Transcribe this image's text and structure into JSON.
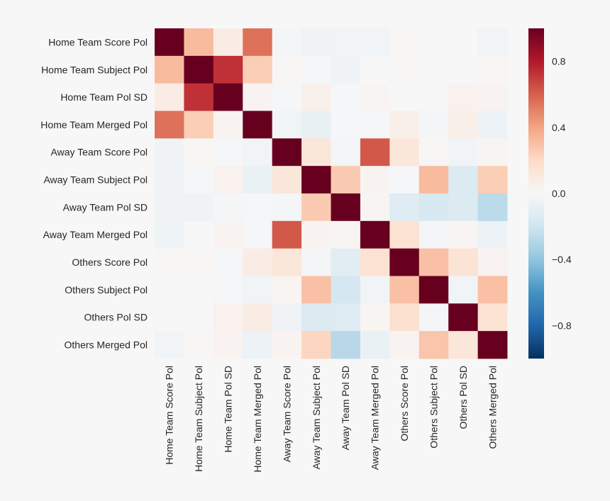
{
  "chart_data": {
    "type": "heatmap",
    "title": "",
    "xlabel": "",
    "ylabel": "",
    "rows": [
      "Home Team Score Pol",
      "Home Team Subject Pol",
      "Home Team Pol SD",
      "Home Team Merged Pol",
      "Away Team Score Pol",
      "Away Team Subject Pol",
      "Away Team Pol SD",
      "Away Team Merged Pol",
      "Others Score Pol",
      "Others Subject Pol",
      "Others Pol SD",
      "Others Merged Pol"
    ],
    "columns": [
      "Home Team Score Pol",
      "Home Team Subject Pol",
      "Home Team Pol SD",
      "Home Team Merged Pol",
      "Away Team Score Pol",
      "Away Team Subject Pol",
      "Away Team Pol SD",
      "Away Team Merged Pol",
      "Others Score Pol",
      "Others Subject Pol",
      "Others Pol SD",
      "Others Merged Pol"
    ],
    "values": [
      [
        1.0,
        0.32,
        0.08,
        0.55,
        -0.02,
        -0.04,
        -0.03,
        -0.03,
        0.01,
        0.0,
        0.0,
        -0.03
      ],
      [
        0.32,
        1.0,
        0.73,
        0.25,
        0.01,
        -0.01,
        -0.04,
        0.0,
        0.01,
        0.0,
        0.0,
        0.01
      ],
      [
        0.08,
        0.73,
        1.0,
        0.03,
        -0.01,
        0.05,
        -0.01,
        0.02,
        0.0,
        0.0,
        0.04,
        0.03
      ],
      [
        0.55,
        0.25,
        0.03,
        1.0,
        -0.03,
        -0.08,
        -0.01,
        -0.01,
        0.06,
        -0.02,
        0.06,
        -0.06
      ],
      [
        -0.04,
        0.01,
        -0.01,
        -0.03,
        1.0,
        0.12,
        -0.02,
        0.62,
        0.12,
        0.01,
        -0.03,
        0.02
      ],
      [
        -0.04,
        -0.01,
        0.04,
        -0.07,
        0.12,
        1.0,
        0.26,
        0.03,
        -0.01,
        0.32,
        -0.14,
        0.25
      ],
      [
        -0.04,
        -0.04,
        -0.02,
        -0.01,
        -0.02,
        0.26,
        1.0,
        0.02,
        -0.12,
        -0.16,
        -0.14,
        -0.27
      ],
      [
        -0.05,
        0.0,
        0.03,
        -0.01,
        0.62,
        0.03,
        0.02,
        1.0,
        0.15,
        -0.02,
        0.02,
        -0.06
      ],
      [
        0.01,
        0.01,
        -0.01,
        0.08,
        0.12,
        -0.02,
        -0.11,
        0.15,
        1.0,
        0.3,
        0.14,
        0.03
      ],
      [
        0.0,
        0.0,
        -0.01,
        -0.03,
        0.02,
        0.3,
        -0.18,
        -0.03,
        0.3,
        1.0,
        -0.03,
        0.3
      ],
      [
        0.0,
        0.0,
        0.04,
        0.08,
        -0.04,
        -0.14,
        -0.13,
        0.02,
        0.16,
        -0.02,
        1.0,
        0.15
      ],
      [
        -0.03,
        0.01,
        0.03,
        -0.06,
        0.03,
        0.22,
        -0.28,
        -0.07,
        0.03,
        0.28,
        0.12,
        1.0
      ]
    ],
    "vmin": -1.0,
    "vmax": 1.0,
    "colorbar_ticks": [
      "0.8",
      "0.4",
      "0.0",
      "−0.4",
      "−0.8"
    ],
    "colorbar_tick_values": [
      0.8,
      0.4,
      0.0,
      -0.4,
      -0.8
    ],
    "colormap": "RdBu_r",
    "colormap_stops": [
      "#053061",
      "#2166ac",
      "#4393c3",
      "#92c5de",
      "#d1e5f0",
      "#f7f7f7",
      "#fddbc7",
      "#f4a582",
      "#d6604d",
      "#b2182b",
      "#67001f"
    ],
    "background": "#f7f7f7"
  }
}
